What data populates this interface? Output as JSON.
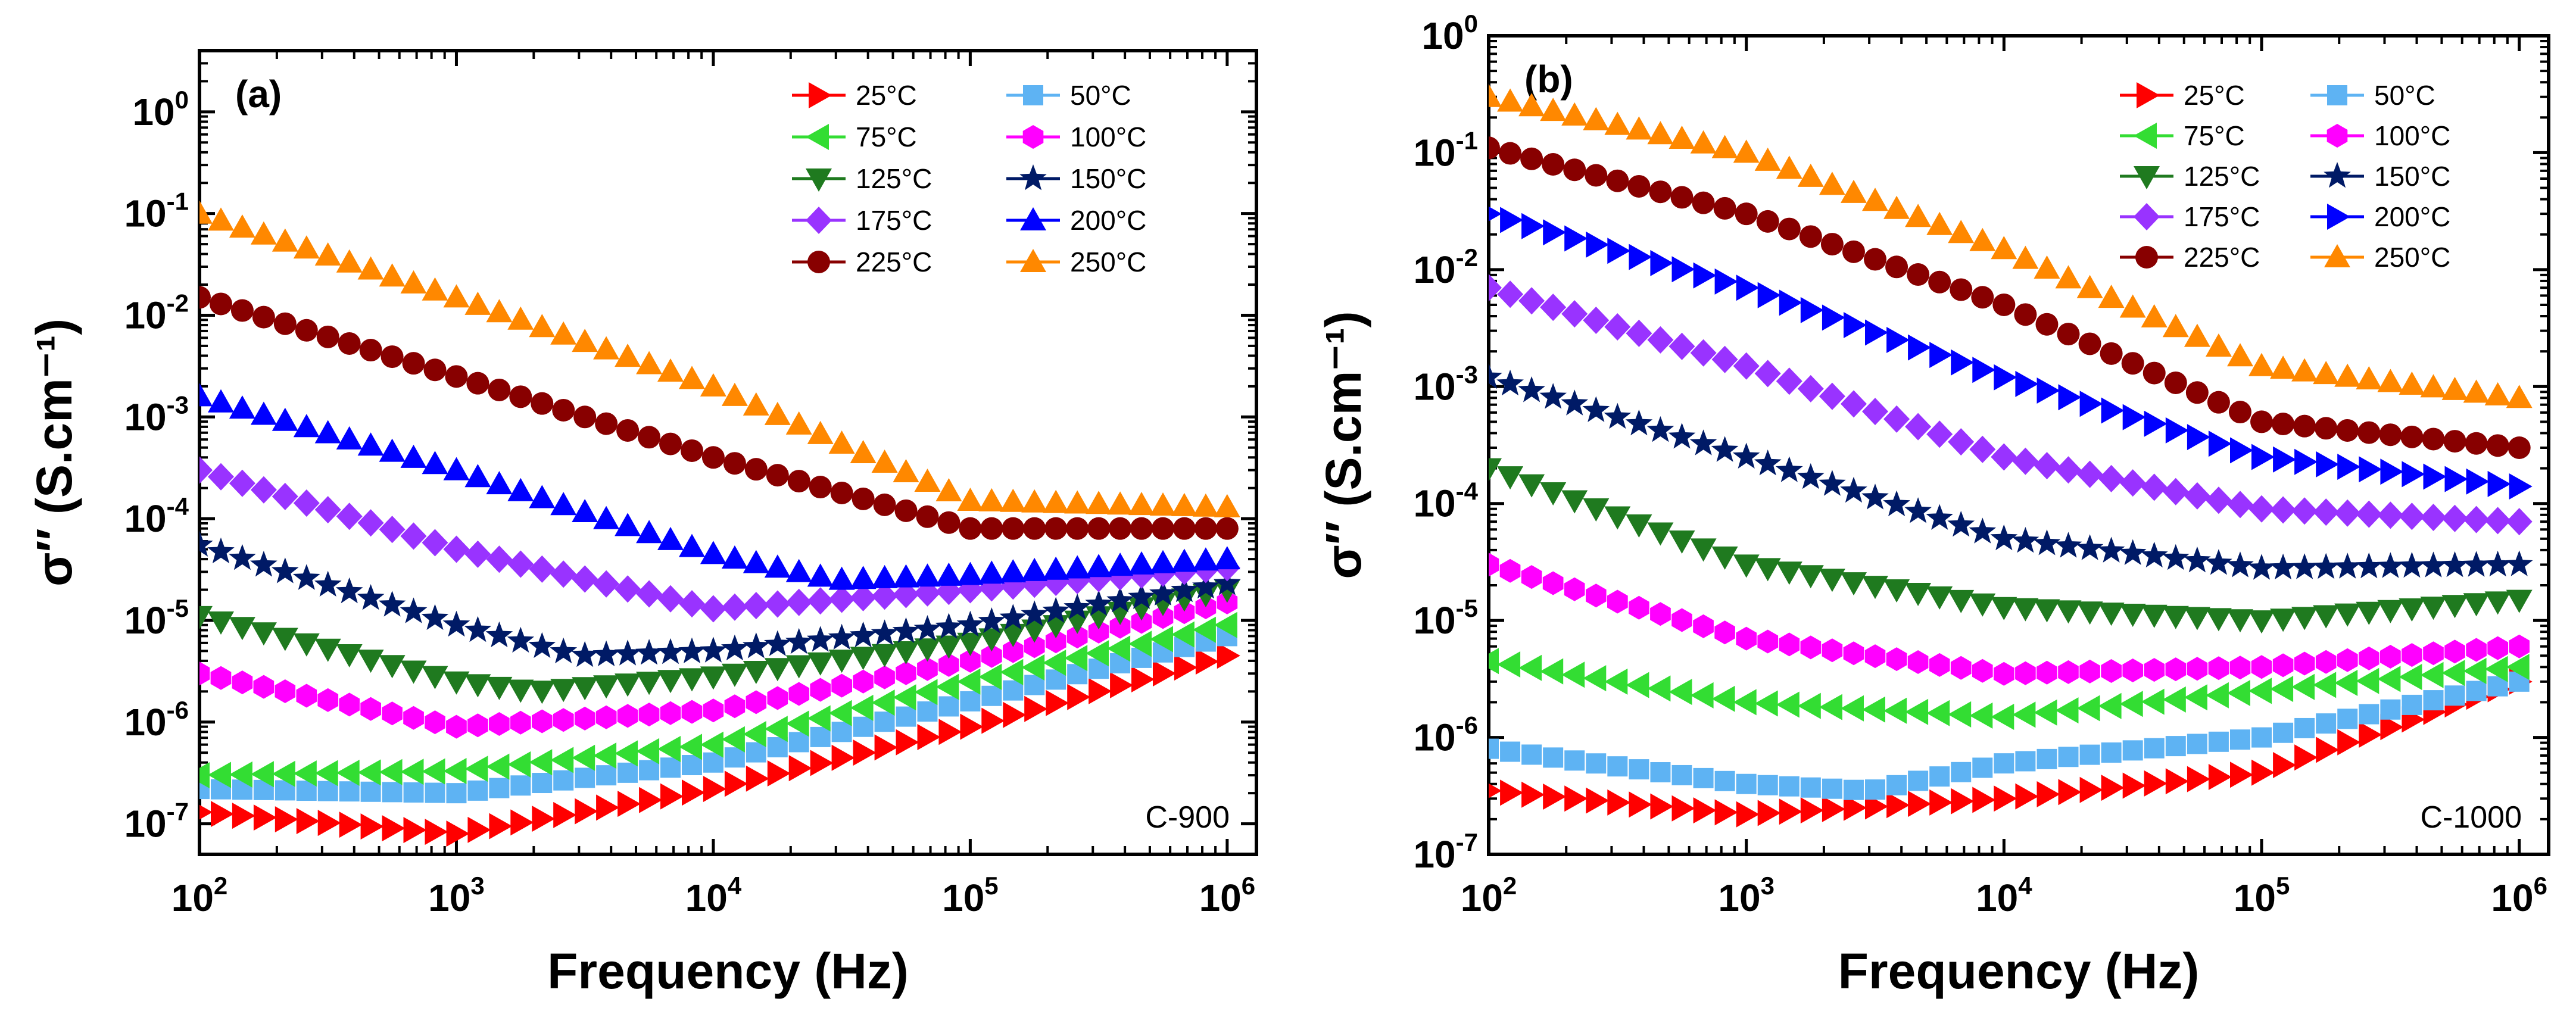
{
  "chart_data": [
    {
      "type": "scatter",
      "panel_label": "(a)",
      "sample_label": "C-900",
      "xlabel": "Frequency (Hz)",
      "ylabel": "σ′′ (S.cm⁻¹)",
      "xscale": "log",
      "yscale": "log",
      "xlim": [
        100,
        1300000
      ],
      "ylim": [
        5e-08,
        4
      ],
      "x_ticks": [
        "10^2",
        "10^3",
        "10^4",
        "10^5",
        "10^6"
      ],
      "y_ticks": [
        "10^-7",
        "10^-6",
        "10^-5",
        "10^-4",
        "10^-3",
        "10^-2",
        "10^-1",
        "10^0"
      ],
      "legend_position": "top-right",
      "series": [
        {
          "name": "25°C",
          "color": "#FF0000",
          "marker": "triangle-right",
          "points": [
            [
              100,
              1.3e-07
            ],
            [
              1000,
              8e-08
            ],
            [
              10000,
              2.2e-07
            ],
            [
              100000,
              9e-07
            ],
            [
              1000000,
              4.5e-06
            ]
          ]
        },
        {
          "name": "50°C",
          "color": "#5EB3F3",
          "marker": "square",
          "points": [
            [
              100,
              2.2e-07
            ],
            [
              1000,
              2e-07
            ],
            [
              10000,
              4e-07
            ],
            [
              100000,
              1.6e-06
            ],
            [
              1000000,
              7e-06
            ]
          ]
        },
        {
          "name": "75°C",
          "color": "#33DD33",
          "marker": "triangle-left",
          "points": [
            [
              100,
              3e-07
            ],
            [
              1000,
              3.3e-07
            ],
            [
              10000,
              6e-07
            ],
            [
              100000,
              2.5e-06
            ],
            [
              1000000,
              9e-06
            ]
          ]
        },
        {
          "name": "100°C",
          "color": "#FF00FF",
          "marker": "hexagon",
          "points": [
            [
              100,
              3e-06
            ],
            [
              1000,
              9e-07
            ],
            [
              10000,
              1.3e-06
            ],
            [
              100000,
              4e-06
            ],
            [
              1000000,
              1.5e-05
            ]
          ]
        },
        {
          "name": "125°C",
          "color": "#1F7A1F",
          "marker": "triangle-down",
          "points": [
            [
              100,
              1.1e-05
            ],
            [
              1000,
              2.5e-06
            ],
            [
              2000,
              2e-06
            ],
            [
              10000,
              2.8e-06
            ],
            [
              100000,
              6e-06
            ],
            [
              1000000,
              2e-05
            ]
          ]
        },
        {
          "name": "150°C",
          "color": "#001A66",
          "marker": "star",
          "points": [
            [
              100,
              5.5e-05
            ],
            [
              1000,
              9e-06
            ],
            [
              3000,
              4.5e-06
            ],
            [
              10000,
              5e-06
            ],
            [
              100000,
              9e-06
            ],
            [
              1000000,
              2.3e-05
            ]
          ]
        },
        {
          "name": "175°C",
          "color": "#9933FF",
          "marker": "diamond",
          "points": [
            [
              100,
              0.0003
            ],
            [
              1000,
              5e-05
            ],
            [
              10000,
              1.3e-05
            ],
            [
              100000,
              2e-05
            ],
            [
              1000000,
              3.3e-05
            ]
          ]
        },
        {
          "name": "200°C",
          "color": "#0000FF",
          "marker": "triangle-up",
          "points": [
            [
              100,
              0.0016
            ],
            [
              1000,
              0.0003
            ],
            [
              10000,
              4.5e-05
            ],
            [
              30000,
              2.5e-05
            ],
            [
              100000,
              2.8e-05
            ],
            [
              1000000,
              4e-05
            ]
          ]
        },
        {
          "name": "225°C",
          "color": "#880000",
          "marker": "circle",
          "points": [
            [
              100,
              0.015
            ],
            [
              1000,
              0.0025
            ],
            [
              10000,
              0.0004
            ],
            [
              100000,
              8e-05
            ],
            [
              1000000,
              8e-05
            ]
          ]
        },
        {
          "name": "250°C",
          "color": "#FF8800",
          "marker": "triangle-up",
          "points": [
            [
              100,
              0.1
            ],
            [
              1000,
              0.015
            ],
            [
              10000,
              0.002
            ],
            [
              100000,
              0.00015
            ],
            [
              1000000,
              0.00013
            ]
          ]
        }
      ]
    },
    {
      "type": "scatter",
      "panel_label": "(b)",
      "sample_label": "C-1000",
      "xlabel": "Frequency (Hz)",
      "ylabel": "σ′′ (S.cm⁻¹)",
      "xscale": "log",
      "yscale": "log",
      "xlim": [
        100,
        1300000
      ],
      "ylim": [
        1e-07,
        1
      ],
      "x_ticks": [
        "10^2",
        "10^3",
        "10^4",
        "10^5",
        "10^6"
      ],
      "y_ticks": [
        "10^-7",
        "10^-6",
        "10^-5",
        "10^-4",
        "10^-3",
        "10^-2",
        "10^-1",
        "10^0"
      ],
      "legend_position": "top-right",
      "series": [
        {
          "name": "25°C",
          "color": "#FF0000",
          "marker": "triangle-right",
          "points": [
            [
              100,
              3.5e-07
            ],
            [
              1000,
              2.2e-07
            ],
            [
              10000,
              3e-07
            ],
            [
              100000,
              5e-07
            ],
            [
              1000000,
              3e-06
            ]
          ]
        },
        {
          "name": "50°C",
          "color": "#5EB3F3",
          "marker": "square",
          "points": [
            [
              100,
              8e-07
            ],
            [
              1000,
              4e-07
            ],
            [
              3000,
              3.5e-07
            ],
            [
              10000,
              6e-07
            ],
            [
              100000,
              1e-06
            ],
            [
              1000000,
              3e-06
            ]
          ]
        },
        {
          "name": "75°C",
          "color": "#33DD33",
          "marker": "triangle-left",
          "points": [
            [
              100,
              4.5e-06
            ],
            [
              1000,
              2e-06
            ],
            [
              10000,
              1.5e-06
            ],
            [
              100000,
              2.5e-06
            ],
            [
              1000000,
              4e-06
            ]
          ]
        },
        {
          "name": "100°C",
          "color": "#FF00FF",
          "marker": "hexagon",
          "points": [
            [
              100,
              3e-05
            ],
            [
              1000,
              7e-06
            ],
            [
              10000,
              3.5e-06
            ],
            [
              100000,
              4e-06
            ],
            [
              1000000,
              6e-06
            ]
          ]
        },
        {
          "name": "125°C",
          "color": "#1F7A1F",
          "marker": "triangle-down",
          "points": [
            [
              100,
              0.0002
            ],
            [
              1000,
              3e-05
            ],
            [
              10000,
              1.3e-05
            ],
            [
              100000,
              1e-05
            ],
            [
              1000000,
              1.5e-05
            ]
          ]
        },
        {
          "name": "150°C",
          "color": "#001A66",
          "marker": "star",
          "points": [
            [
              100,
              0.0012
            ],
            [
              1000,
              0.00025
            ],
            [
              10000,
              5e-05
            ],
            [
              100000,
              2.8e-05
            ],
            [
              1000000,
              3e-05
            ]
          ]
        },
        {
          "name": "175°C",
          "color": "#9933FF",
          "marker": "diamond",
          "points": [
            [
              100,
              0.007
            ],
            [
              1000,
              0.0015
            ],
            [
              10000,
              0.00025
            ],
            [
              100000,
              9e-05
            ],
            [
              1000000,
              7e-05
            ]
          ]
        },
        {
          "name": "200°C",
          "color": "#0000FF",
          "marker": "triangle-right",
          "points": [
            [
              100,
              0.03
            ],
            [
              1000,
              0.007
            ],
            [
              10000,
              0.0012
            ],
            [
              100000,
              0.00025
            ],
            [
              1000000,
              0.00014
            ]
          ]
        },
        {
          "name": "225°C",
          "color": "#880000",
          "marker": "circle",
          "points": [
            [
              100,
              0.11
            ],
            [
              1000,
              0.03
            ],
            [
              10000,
              0.005
            ],
            [
              100000,
              0.0005
            ],
            [
              1000000,
              0.0003
            ]
          ]
        },
        {
          "name": "250°C",
          "color": "#FF8800",
          "marker": "triangle-up",
          "points": [
            [
              100,
              0.3
            ],
            [
              1000,
              0.1
            ],
            [
              10000,
              0.015
            ],
            [
              100000,
              0.0015
            ],
            [
              1000000,
              0.0008
            ]
          ]
        }
      ]
    }
  ]
}
